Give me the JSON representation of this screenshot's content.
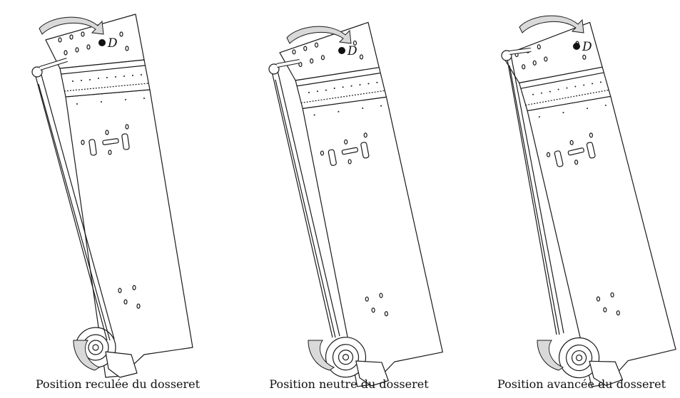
{
  "figure": {
    "panels": [
      {
        "id": "reculee",
        "caption": "Position reculée du dosseret",
        "point_label": "D",
        "motion_arrow": "arrow-rotate-icon"
      },
      {
        "id": "neutre",
        "caption": "Position neutre du dosseret",
        "point_label": "D",
        "motion_arrow": "arrow-rotate-icon"
      },
      {
        "id": "avancee",
        "caption": "Position avancée du dosseret",
        "point_label": "D",
        "motion_arrow": "arrow-rotate-icon"
      }
    ],
    "colors": {
      "stroke": "#1a1a1a",
      "arrow_fill": "#d9d9d9",
      "background": "#ffffff"
    }
  }
}
